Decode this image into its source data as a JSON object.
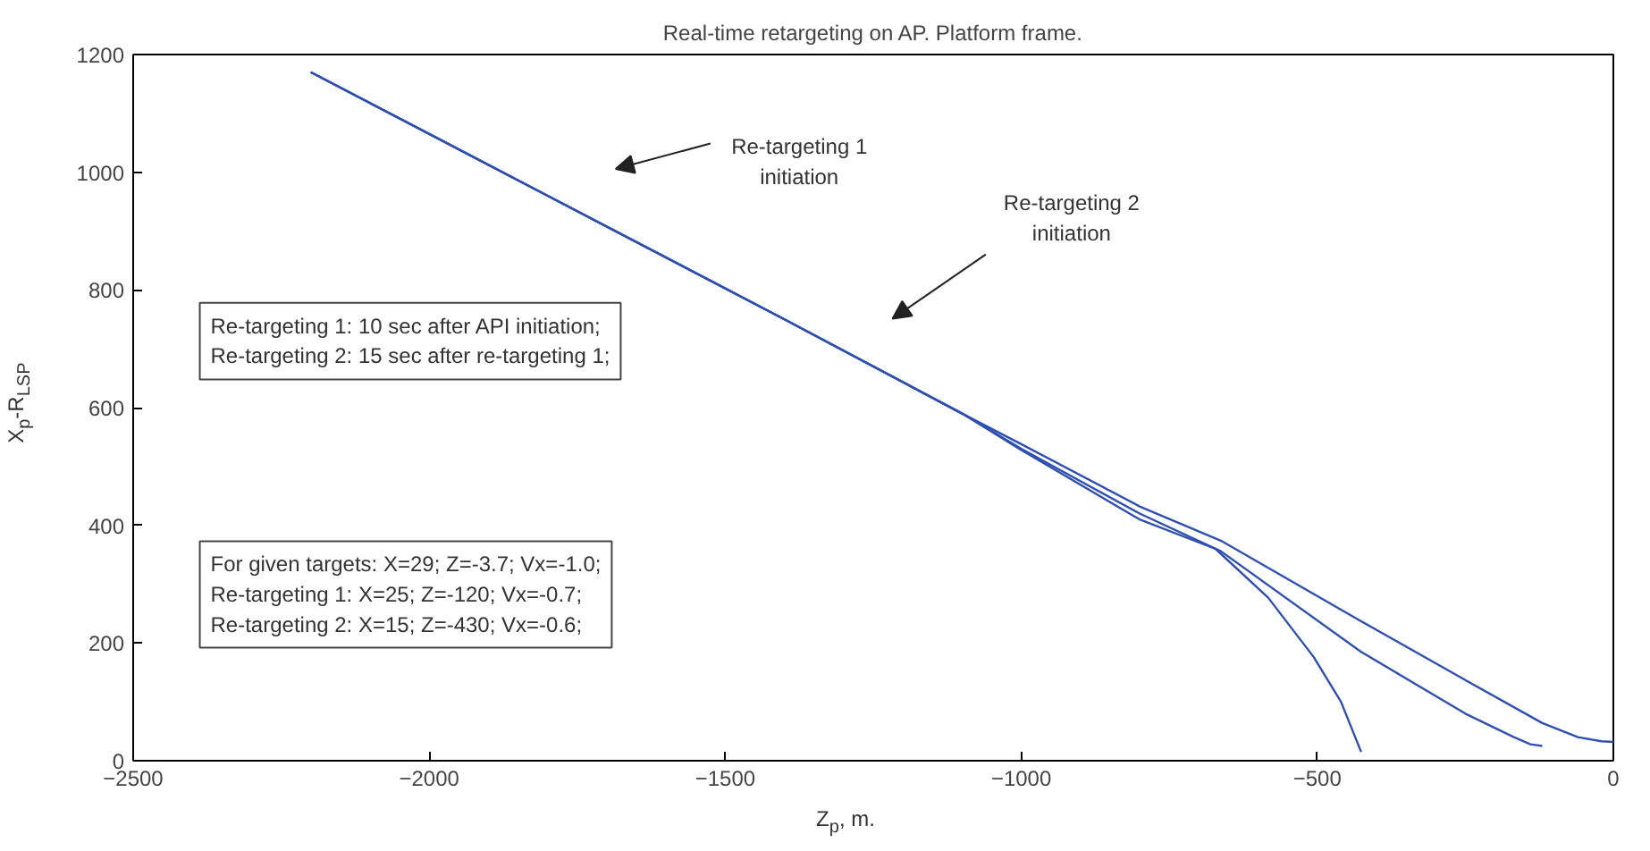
{
  "chart_data": {
    "type": "line",
    "title": "Real-time retargeting on AP. Platform frame.",
    "xlabel": "Z$_{p}$, m.",
    "ylabel": "X$_{p}$-R$_{LSP}$",
    "xlim": [
      -2500,
      0
    ],
    "ylim": [
      0,
      1200
    ],
    "xticks": [
      -2500,
      -2000,
      -1500,
      -1000,
      -500,
      0
    ],
    "yticks": [
      0,
      200,
      400,
      600,
      800,
      1000,
      1200
    ],
    "grid": false,
    "marker": "none",
    "line_style": "solid",
    "series": [
      {
        "color": "#3050b0",
        "x": [
          -2200,
          -1800,
          -1400,
          -1100,
          -1000,
          -800,
          -663,
          -426,
          -250,
          -120,
          -60,
          -20,
          0
        ],
        "values": [
          1170,
          960,
          750,
          590,
          538,
          432,
          374,
          237,
          137,
          64,
          40,
          33,
          32
        ]
      },
      {
        "color": "#3050b0",
        "x": [
          -2200,
          -1800,
          -1400,
          -1100,
          -1000,
          -800,
          -663,
          -426,
          -250,
          -168,
          -140,
          -120
        ],
        "values": [
          1170,
          960,
          750,
          590,
          530,
          420,
          356,
          185,
          80,
          40,
          28,
          25
        ]
      },
      {
        "color": "#3050b0",
        "x": [
          -2200,
          -1800,
          -1400,
          -1100,
          -1000,
          -800,
          -672,
          -583,
          -506,
          -460,
          -426
        ],
        "values": [
          1170,
          960,
          750,
          590,
          528,
          410,
          360,
          277,
          176,
          100,
          15
        ]
      }
    ],
    "annotations": [
      "Re-targeting 1\ninitiation",
      "Re-targeting 2\ninitiation",
      "Re-targeting 1: 10 sec after API initiation;\nRe-targeting 2: 15 sec after re-targeting 1;",
      "For given targets: X=29; Z=-3.7; Vx=-1.0;\nRe-targeting 1: X=25; Z=-120; Vx=-0.7;\nRe-targeting 2: X=15; Z=-430; Vx=-0.6;"
    ]
  }
}
